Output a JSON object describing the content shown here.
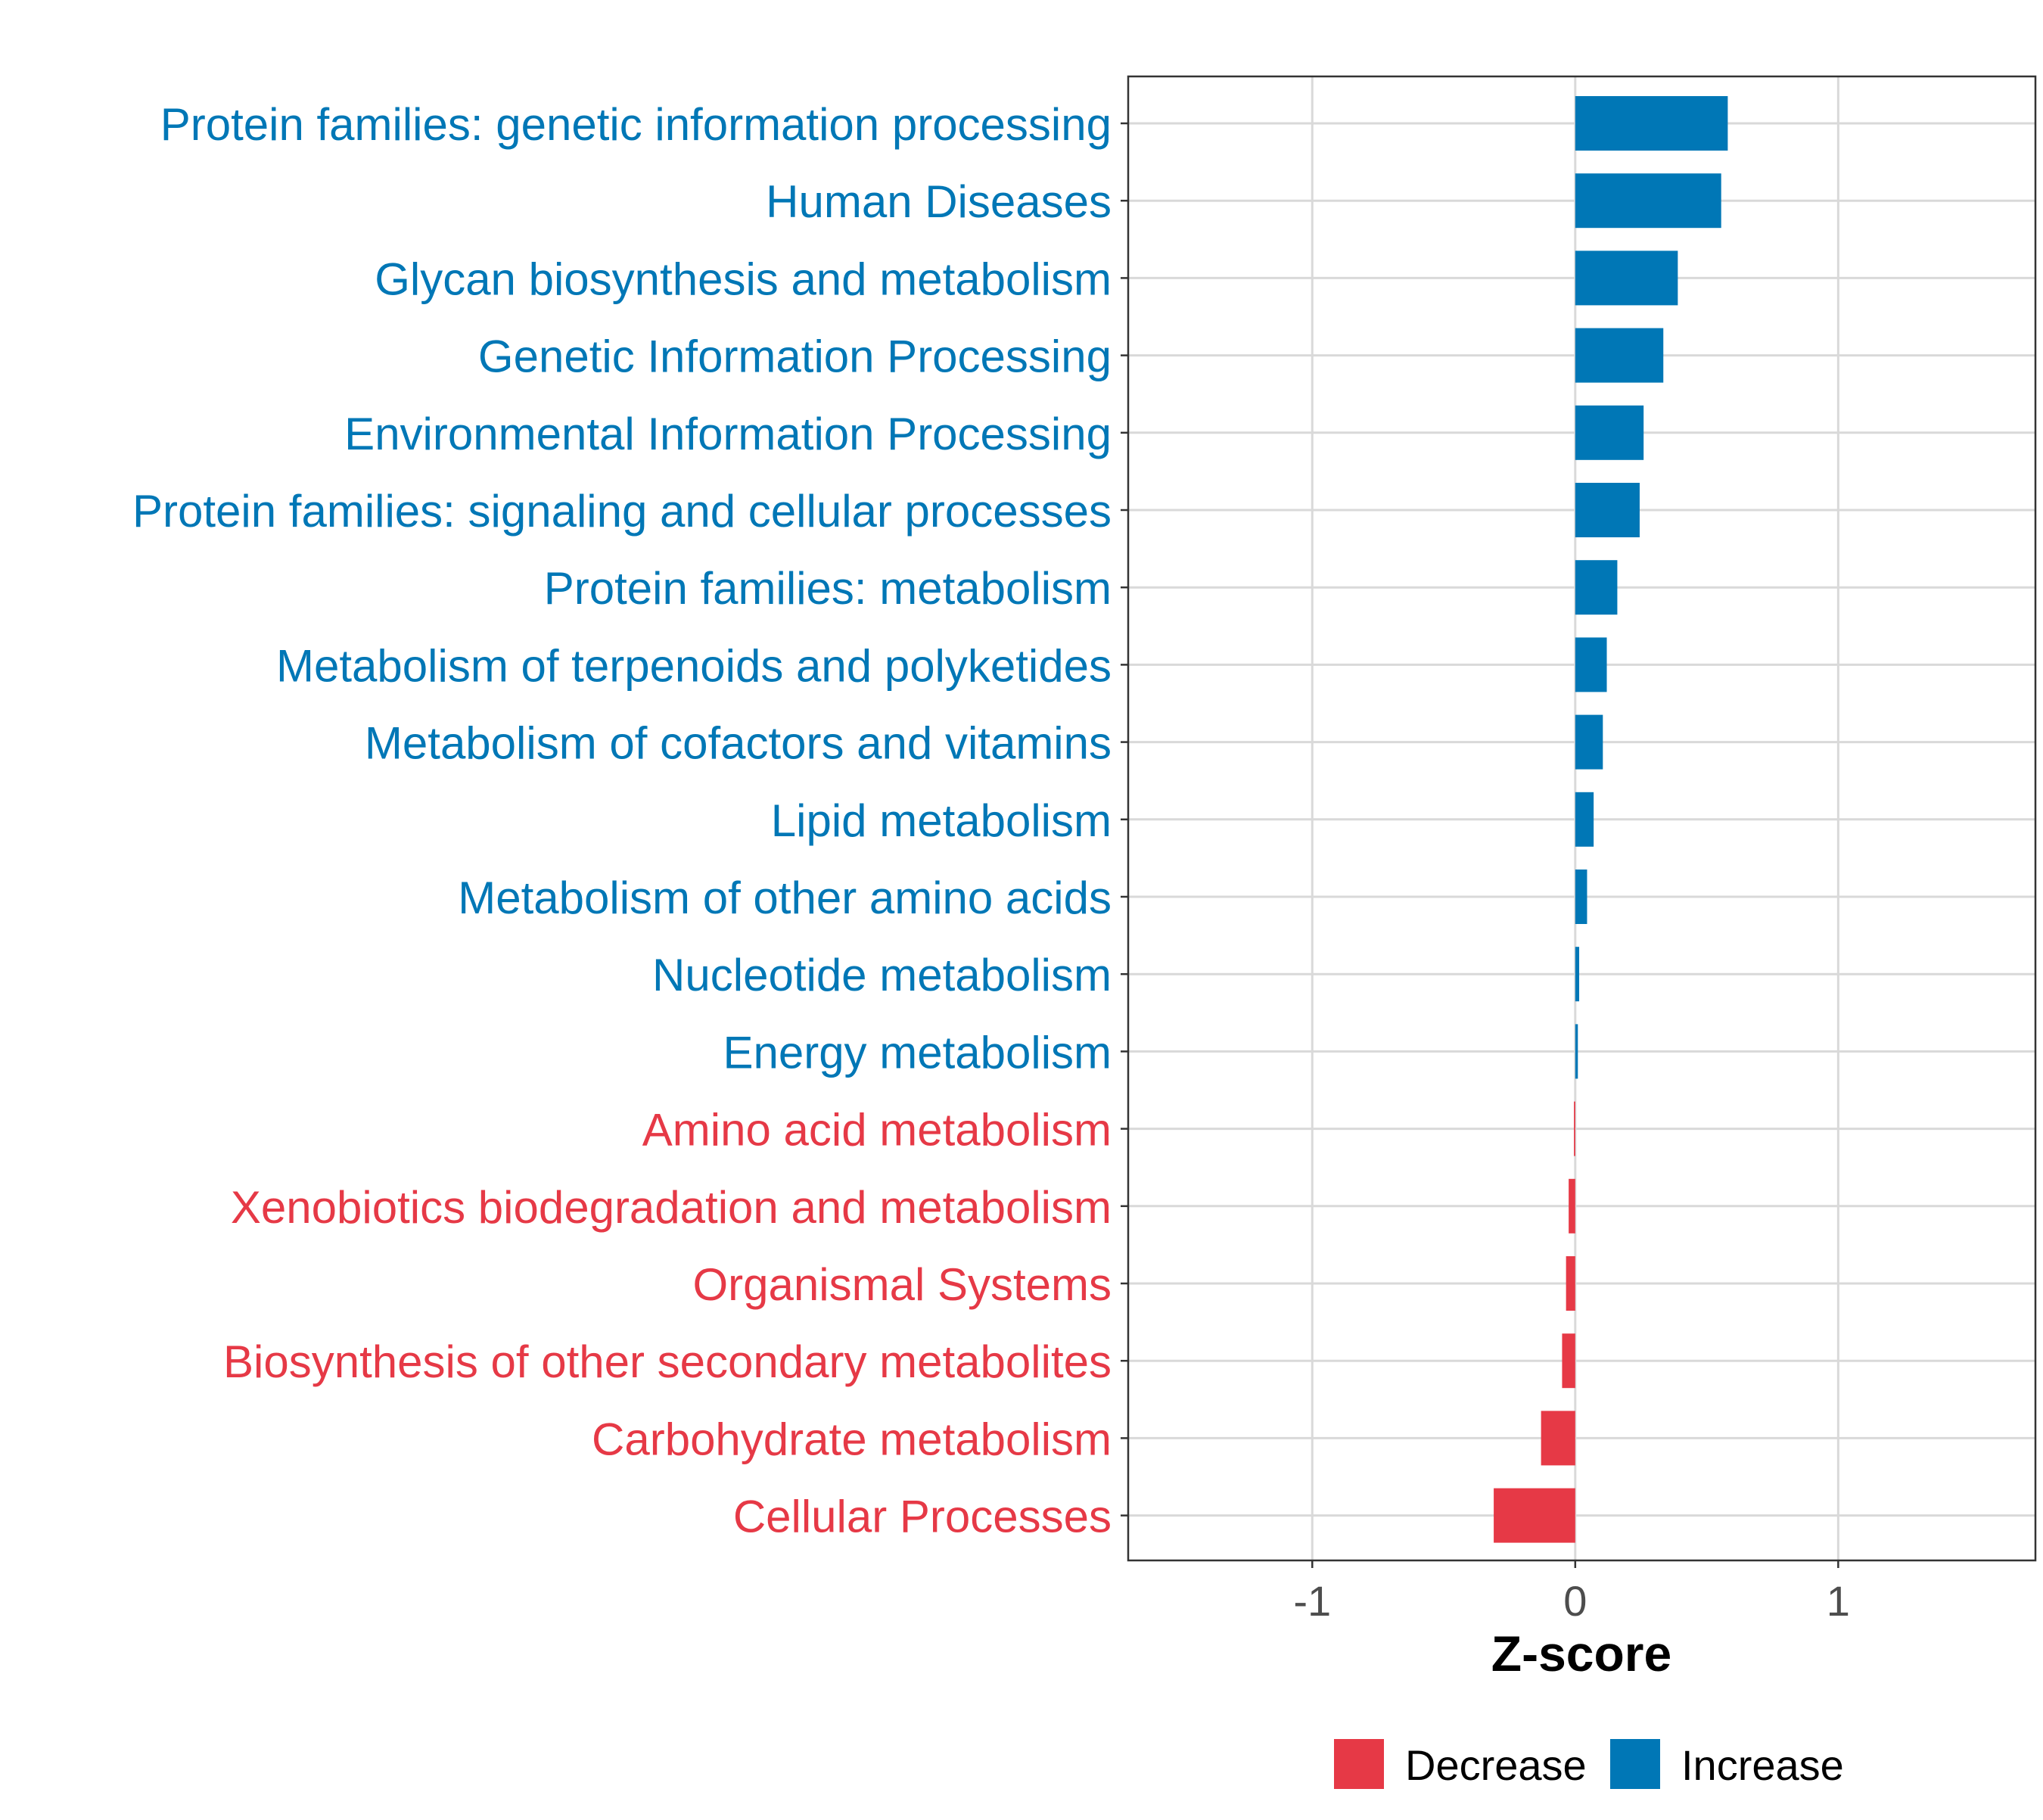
{
  "chart_data": {
    "type": "bar",
    "orientation": "horizontal",
    "title": "",
    "xlabel": "Z-score",
    "ylabel": "",
    "xlim": [
      -1.7,
      1.75
    ],
    "xticks": [
      -1,
      0,
      1
    ],
    "xtick_labels": [
      "-1",
      "0",
      "1"
    ],
    "grid": true,
    "legend_position": "bottom",
    "colors": {
      "Decrease": "#E63946",
      "Increase": "#0077B6"
    },
    "legend": [
      {
        "label": "Decrease",
        "color": "#E63946"
      },
      {
        "label": "Increase",
        "color": "#0077B6"
      }
    ],
    "categories": [
      "Protein families: genetic information processing",
      "Human Diseases",
      "Glycan biosynthesis and metabolism",
      "Genetic Information Processing",
      "Environmental Information Processing",
      "Protein families: signaling and cellular processes",
      "Protein families: metabolism",
      "Metabolism of terpenoids and polyketides",
      "Metabolism of cofactors and vitamins",
      "Lipid metabolism",
      "Metabolism of other amino acids",
      "Nucleotide metabolism",
      "Energy metabolism",
      "Amino acid metabolism",
      "Xenobiotics biodegradation and metabolism",
      "Organismal Systems",
      "Biosynthesis of other secondary metabolites",
      "Carbohydrate metabolism",
      "Cellular Processes"
    ],
    "values": [
      0.58,
      0.555,
      0.39,
      0.335,
      0.26,
      0.245,
      0.16,
      0.12,
      0.105,
      0.07,
      0.045,
      0.015,
      0.01,
      -0.005,
      -0.025,
      -0.035,
      -0.05,
      -0.13,
      -0.31
    ],
    "groups": [
      "Increase",
      "Increase",
      "Increase",
      "Increase",
      "Increase",
      "Increase",
      "Increase",
      "Increase",
      "Increase",
      "Increase",
      "Increase",
      "Increase",
      "Increase",
      "Decrease",
      "Decrease",
      "Decrease",
      "Decrease",
      "Decrease",
      "Decrease"
    ]
  }
}
